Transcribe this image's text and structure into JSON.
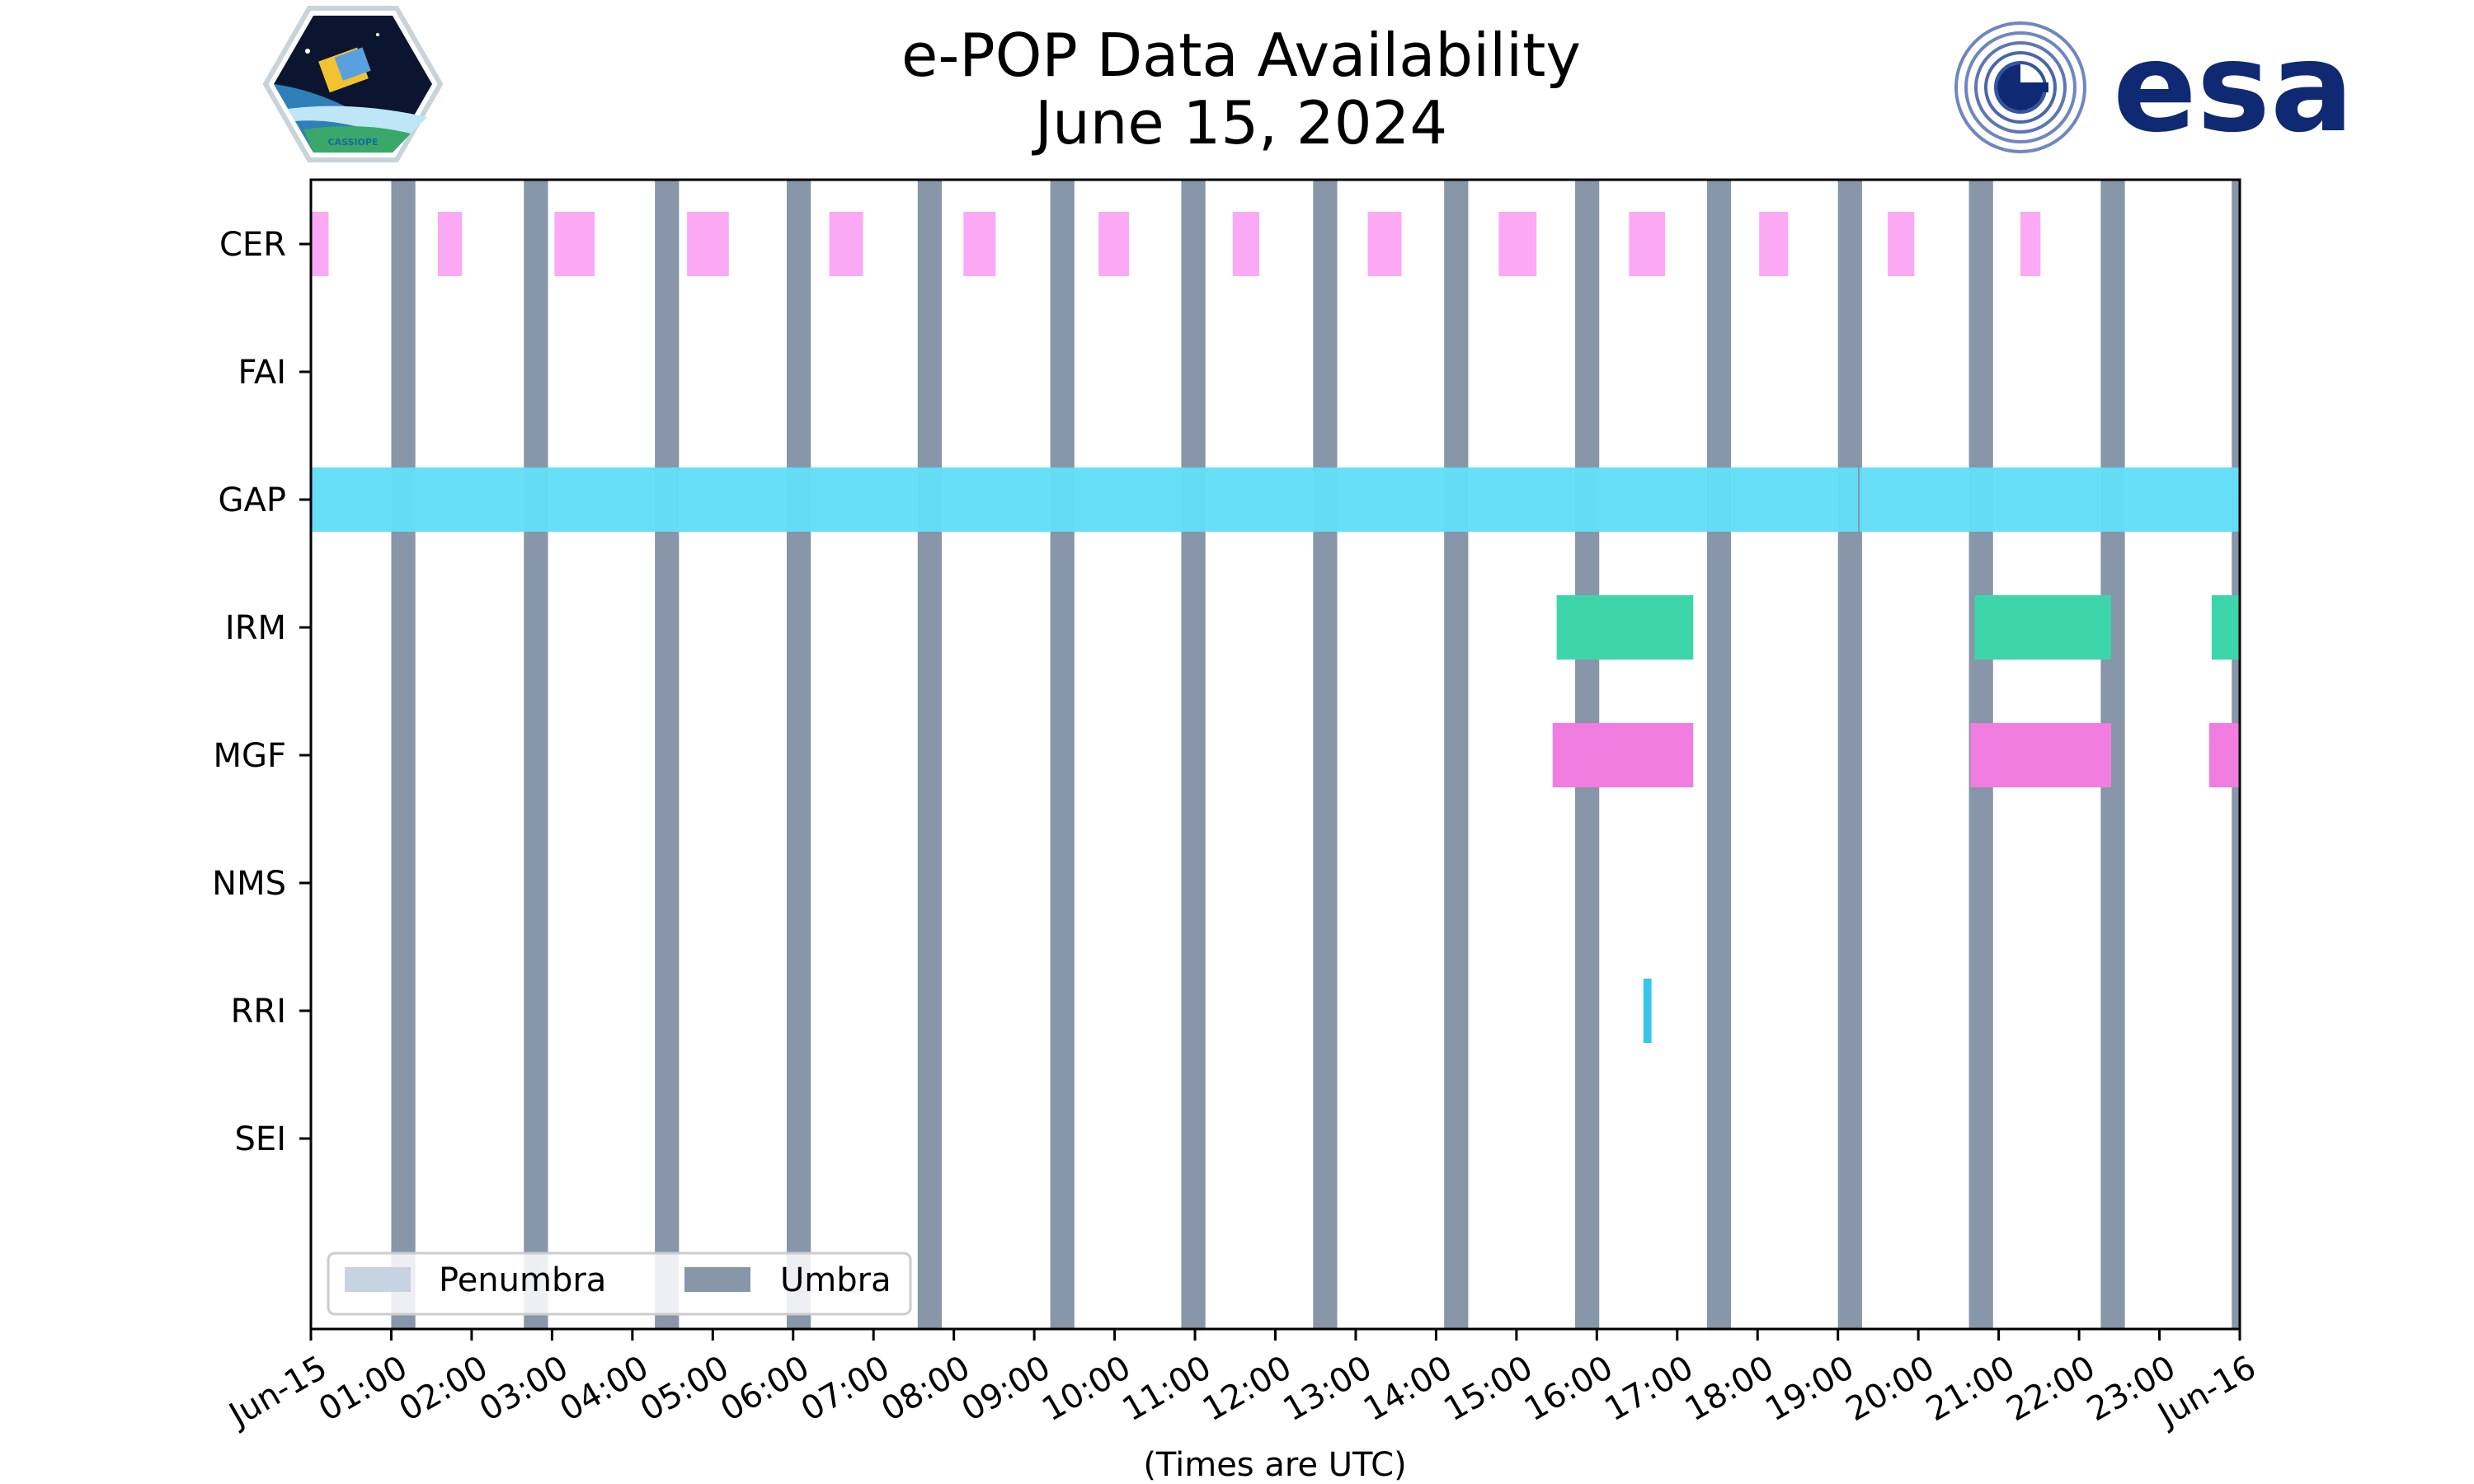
{
  "colors": {
    "background": "#ffffff",
    "axis": "#000000",
    "penumbra": "#c6d3e3",
    "umbra": "#8796a8",
    "esa_blue": "#0f2a72"
  },
  "logos": {
    "left": {
      "name": "cassiope-mission-patch",
      "text": "CASSIOPE"
    },
    "right": {
      "name": "esa-logo",
      "text": "esa"
    }
  },
  "chart_data": {
    "type": "timeline",
    "title": "e-POP Data Availability",
    "subtitle": "June 15, 2024",
    "xlabel": "(Times are UTC)",
    "ylabel": "",
    "x_range_hours": [
      0,
      24
    ],
    "x_tick_labels": [
      "Jun-15",
      "01:00",
      "02:00",
      "03:00",
      "04:00",
      "05:00",
      "06:00",
      "07:00",
      "08:00",
      "09:00",
      "10:00",
      "11:00",
      "12:00",
      "13:00",
      "14:00",
      "15:00",
      "16:00",
      "17:00",
      "18:00",
      "19:00",
      "20:00",
      "21:00",
      "22:00",
      "23:00",
      "Jun-16"
    ],
    "instruments": [
      "CER",
      "FAI",
      "GAP",
      "IRM",
      "MGF",
      "NMS",
      "RRI",
      "SEI"
    ],
    "legend": {
      "placement": "lower-left",
      "entries": [
        {
          "label": "Penumbra",
          "color": "#c6d3e3"
        },
        {
          "label": "Umbra",
          "color": "#8796a8"
        }
      ]
    },
    "umbra_intervals": [
      [
        1.0,
        1.3
      ],
      [
        2.65,
        2.95
      ],
      [
        4.28,
        4.58
      ],
      [
        5.92,
        6.22
      ],
      [
        7.55,
        7.85
      ],
      [
        9.2,
        9.5
      ],
      [
        10.83,
        11.13
      ],
      [
        12.47,
        12.77
      ],
      [
        14.1,
        14.4
      ],
      [
        15.73,
        16.03
      ],
      [
        17.37,
        17.67
      ],
      [
        19.0,
        19.3
      ],
      [
        20.63,
        20.93
      ],
      [
        22.27,
        22.57
      ],
      [
        23.9,
        24.0
      ]
    ],
    "series": [
      {
        "name": "CER",
        "color": "#fca9f5",
        "intervals": [
          [
            0.0,
            0.22
          ],
          [
            1.58,
            1.88
          ],
          [
            3.03,
            3.53
          ],
          [
            4.68,
            5.2
          ],
          [
            6.45,
            6.87
          ],
          [
            8.12,
            8.52
          ],
          [
            9.8,
            10.18
          ],
          [
            11.47,
            11.8
          ],
          [
            13.15,
            13.57
          ],
          [
            14.78,
            15.25
          ],
          [
            16.4,
            16.85
          ],
          [
            18.02,
            18.38
          ],
          [
            19.62,
            19.95
          ],
          [
            21.27,
            21.52
          ]
        ]
      },
      {
        "name": "FAI",
        "color": "#888888",
        "intervals": []
      },
      {
        "name": "GAP",
        "color": "#63def8",
        "intervals": [
          [
            0.0,
            19.25
          ],
          [
            19.27,
            24.0
          ]
        ]
      },
      {
        "name": "IRM",
        "color": "#3dd5aa",
        "intervals": [
          [
            15.5,
            17.2
          ],
          [
            20.7,
            22.4
          ],
          [
            23.65,
            24.0
          ]
        ]
      },
      {
        "name": "MGF",
        "color": "#f07ddf",
        "intervals": [
          [
            15.45,
            17.2
          ],
          [
            20.65,
            22.4
          ],
          [
            23.62,
            24.0
          ]
        ]
      },
      {
        "name": "NMS",
        "color": "#888888",
        "intervals": []
      },
      {
        "name": "RRI",
        "color": "#37c5ea",
        "intervals": [
          [
            16.58,
            16.68
          ]
        ]
      },
      {
        "name": "SEI",
        "color": "#888888",
        "intervals": []
      }
    ]
  }
}
